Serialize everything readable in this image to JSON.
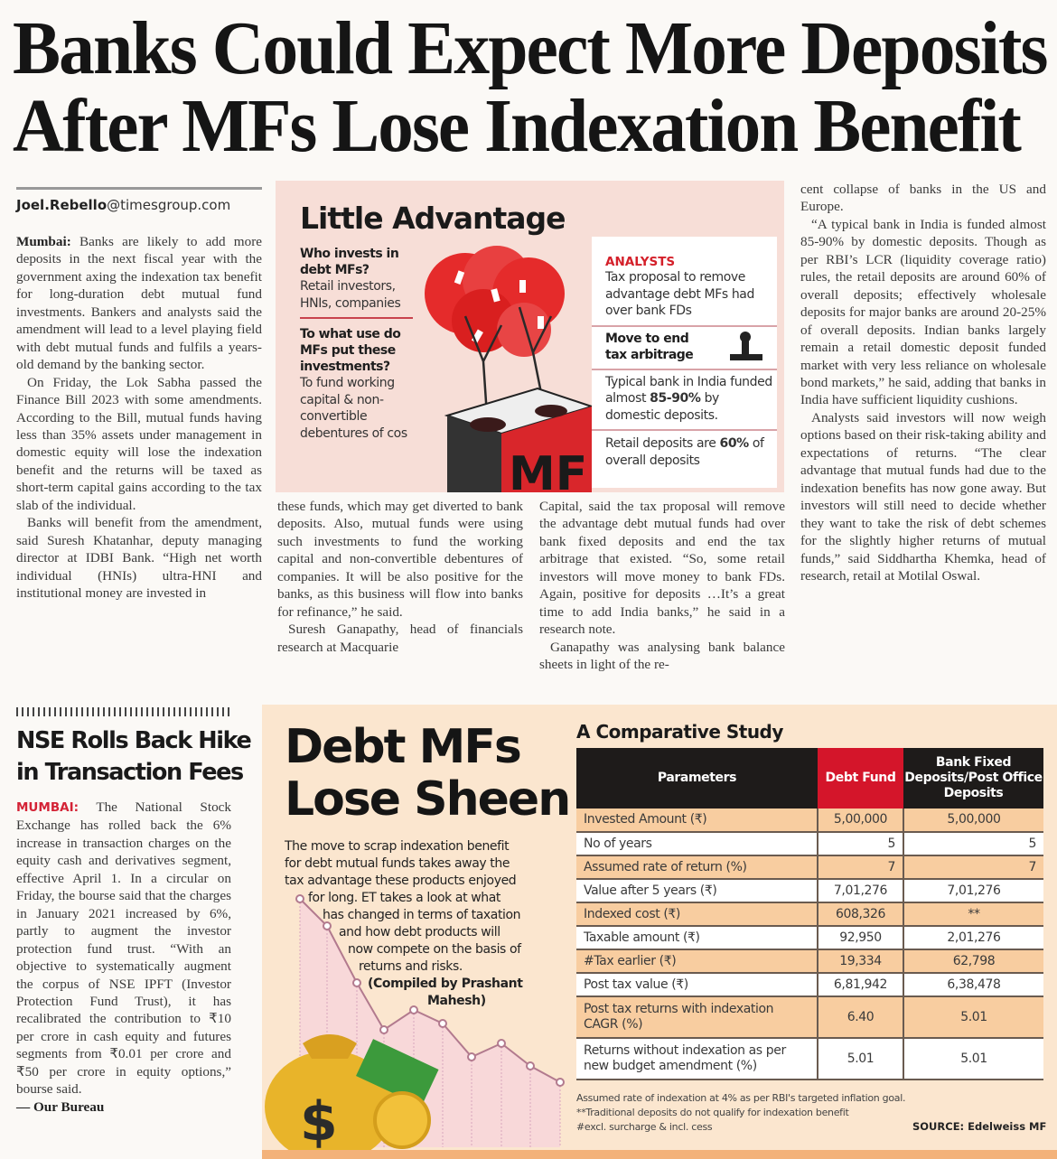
{
  "headline": {
    "line1": "Banks Could Expect More Deposits",
    "line2": "After MFs Lose Indexation Benefit"
  },
  "byline": {
    "name": "Joel.Rebello",
    "domain": "@timesgroup.com"
  },
  "article": {
    "dateline": "Mumbai:",
    "col1": [
      "Banks are likely to add more deposits in the next fiscal year with the government axing the indexation tax benefit for long-duration debt mutual fund investments. Bankers and analysts said the amendment will lead to a level playing field with debt mutual funds and fulfils a years-old demand by the banking sector.",
      "On Friday, the Lok Sabha passed the Finance Bill 2023 with some amendments. According to the Bill, mutual funds having less than 35% assets under management in domestic equity will lose the indexation benefit and the returns will be taxed as short-term capital gains according to the tax slab of the individual.",
      "Banks will benefit from the amendment, said Suresh Khatanhar, deputy managing director at IDBI Bank. “High net worth individual (HNIs) ultra-HNI and institutional money are invested in"
    ],
    "col2": [
      "these funds, which may get diverted to bank deposits. Also, mutual funds were using such investments to fund the working capital and non-convertible debentures of companies. It will be also positive for the banks, as this business will flow into banks for refinance,” he said.",
      "Suresh Ganapathy, head of financials research at Macquarie"
    ],
    "col3": [
      "Capital, said the tax proposal will remove the advantage debt mutual funds had over bank fixed deposits and end the tax arbitrage that existed. “So, some retail investors will move money to bank FDs. Again, positive for deposits …It’s a great time to add India banks,” he said in a research note.",
      "Ganapathy was analysing bank balance sheets in light of the re-"
    ],
    "col4": [
      "cent collapse of banks in the US and Europe.",
      "“A typical bank in India is funded almost 85-90% by domestic deposits. Though as per RBI’s LCR (liquidity coverage ratio) rules, the retail deposits are around 60% of overall deposits; effectively wholesale deposits for major banks are around 20-25% of overall deposits. Indian banks largely remain a retail domestic deposit funded market with very less reliance on wholesale bond markets,” he said, adding that banks in India have sufficient liquidity cushions.",
      "Analysts said investors will now weigh options based on their risk-taking ability and expectations of returns. “The clear advantage that mutual funds had due to the indexation benefits has now gone away. But investors will still need to decide whether they want to take the risk of debt schemes for the slightly higher returns of mutual funds,” said Siddhartha Khemka, head of research, retail at Motilal Oswal."
    ]
  },
  "infographic": {
    "title": "Little Advantage",
    "q1": "Who invests in debt MFs?",
    "a1": "Retail investors, HNIs, companies",
    "q2": "To what use do MFs put these investments?",
    "a2": "To fund working capital & non-convertible debentures of cos",
    "illustration_label": "MF",
    "analysts_label": "ANALYSTS",
    "analysts_text": "Tax proposal to remove advantage debt MFs had over bank FDs",
    "move_title": "Move to end tax arbitrage",
    "typical_pre": "Typical bank in India funded almost ",
    "typical_bold": "85-90%",
    "typical_post": " by domestic deposits.",
    "retail_pre": "Retail deposits are ",
    "retail_bold": "60%",
    "retail_post": " of overall deposits"
  },
  "sidebar": {
    "title_line1": "NSE Rolls Back Hike",
    "title_line2": "in Transaction Fees",
    "dateline": "MUMBAI:",
    "body": " The National Stock Exchange has rolled back the 6% increase in transaction charges on the equity cash and derivatives segment, effective April 1. In a circular on Friday, the bourse said that the charges in January 2021 increased by 6%, partly to augment the investor protection fund trust. “With an objective to systematically augment the corpus of NSE IPFT (Investor Protection Fund Trust), it has recalibrated the contribution to ₹10 per crore in cash equity and futures segments from ₹0.01 per crore and ₹50 per crore in equity options,” bourse said.",
    "signoff": "— Our Bureau"
  },
  "debt_mfs": {
    "title_line1": "Debt MFs",
    "title_line2": "Lose Sheen",
    "desc_lines": [
      "The move to scrap indexation benefit",
      "for debt mutual funds takes away the",
      "tax advantage these products enjoyed",
      "for long. ET takes a look at what",
      "has changed in terms of taxation",
      "and how debt products will",
      "now compete on the basis of",
      "returns and risks."
    ],
    "credit_line1": "(Compiled by Prashant",
    "credit_line2": "Mahesh)",
    "money_symbol": "$"
  },
  "comparison": {
    "title": "A Comparative Study",
    "headers": [
      "Parameters",
      "Debt Fund",
      "Bank Fixed Deposits/Post Office Deposits"
    ],
    "rows": [
      [
        "Invested Amount (₹)",
        "5,00,000",
        "5,00,000"
      ],
      [
        "No of years",
        "5",
        "5"
      ],
      [
        "Assumed rate of return (%)",
        "7",
        "7"
      ],
      [
        "Value after 5 years (₹)",
        "7,01,276",
        "7,01,276"
      ],
      [
        "Indexed cost (₹)",
        "608,326",
        "**"
      ],
      [
        "Taxable amount (₹)",
        "92,950",
        "2,01,276"
      ],
      [
        "#Tax earlier (₹)",
        "19,334",
        "62,798"
      ],
      [
        "Post tax value (₹)",
        "6,81,942",
        "6,38,478"
      ],
      [
        "Post tax returns with indexation CAGR (%)",
        "6.40",
        "5.01"
      ],
      [
        "Returns without indexation as per new budget amendment (%)",
        "5.01",
        "5.01"
      ]
    ],
    "notes": [
      "Assumed rate of indexation at 4% as per RBI's targeted inflation goal.",
      "**Traditional deposits do not qualify for indexation benefit",
      "#excl. surcharge & incl. cess"
    ],
    "source": "SOURCE: Edelweiss MF"
  },
  "colors": {
    "accent_red": "#d4152a",
    "table_orange": "#f8cda0",
    "panel_bg": "#fbe6cf",
    "info_bg": "#f7ded7"
  }
}
